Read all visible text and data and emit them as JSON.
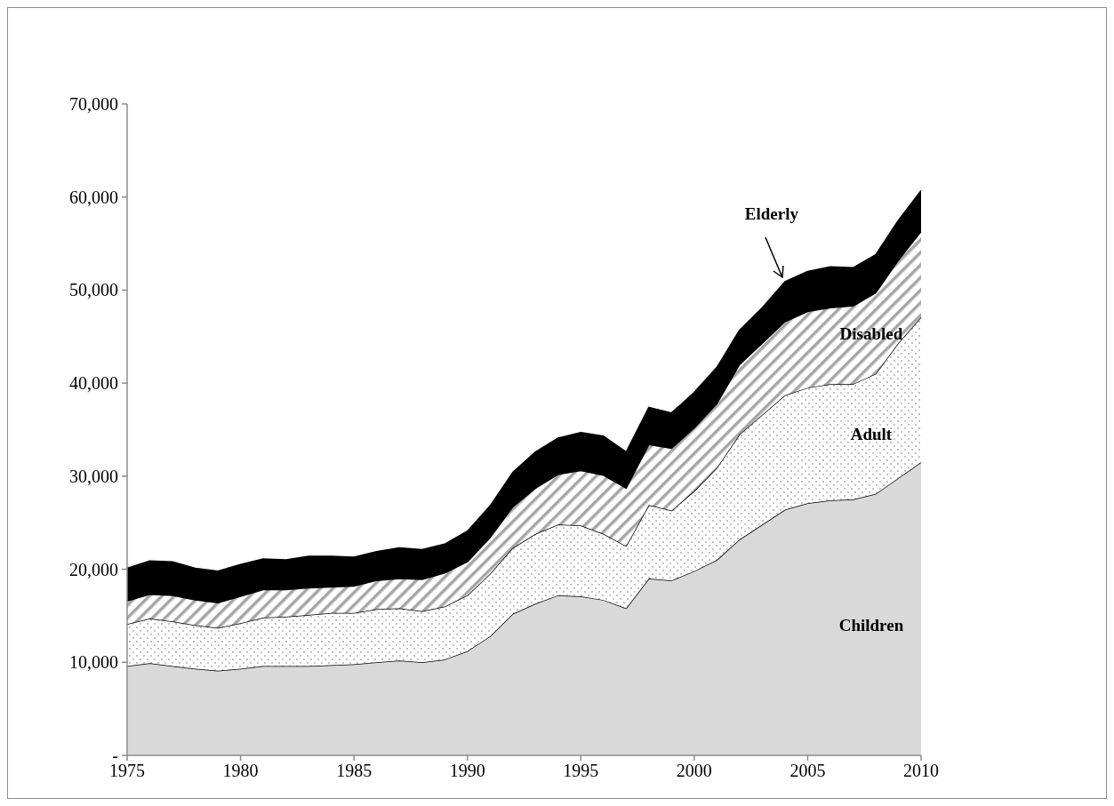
{
  "chart_data": {
    "type": "area",
    "stacked": true,
    "x": [
      1975,
      1976,
      1977,
      1978,
      1979,
      1980,
      1981,
      1982,
      1983,
      1984,
      1985,
      1986,
      1987,
      1988,
      1989,
      1990,
      1991,
      1992,
      1993,
      1994,
      1995,
      1996,
      1997,
      1998,
      1999,
      2000,
      2001,
      2002,
      2003,
      2004,
      2005,
      2006,
      2007,
      2008,
      2009,
      2010
    ],
    "series": [
      {
        "name": "Children",
        "color": "#d9d9d9",
        "values": [
          9600,
          9900,
          9600,
          9300,
          9100,
          9300,
          9600,
          9600,
          9600,
          9700,
          9800,
          10000,
          10200,
          10000,
          10300,
          11200,
          12800,
          15200,
          16300,
          17200,
          17100,
          16700,
          15800,
          19000,
          18800,
          19800,
          21000,
          23200,
          24800,
          26400,
          27100,
          27400,
          27500,
          28100,
          29800,
          31500
        ]
      },
      {
        "name": "Adult",
        "color": "#a6a6a6",
        "values": [
          4500,
          4800,
          4800,
          4700,
          4600,
          4900,
          5200,
          5300,
          5500,
          5600,
          5500,
          5700,
          5600,
          5500,
          5700,
          6000,
          6700,
          7100,
          7500,
          7600,
          7600,
          7100,
          6700,
          7900,
          7500,
          8600,
          9900,
          11300,
          11800,
          12300,
          12400,
          12500,
          12400,
          12900,
          14500,
          15600
        ]
      },
      {
        "name": "Disabled",
        "color": "#a6a6a6",
        "values": [
          2500,
          2600,
          2800,
          2700,
          2700,
          2900,
          3000,
          2900,
          2900,
          2800,
          2900,
          3100,
          3200,
          3400,
          3600,
          3600,
          3900,
          4400,
          4900,
          5400,
          5900,
          6300,
          6200,
          6500,
          6700,
          6800,
          6900,
          7500,
          7700,
          7900,
          8200,
          8200,
          8400,
          8700,
          8900,
          9200
        ]
      },
      {
        "name": "Elderly",
        "color": "#000000",
        "values": [
          3500,
          3600,
          3600,
          3400,
          3400,
          3400,
          3300,
          3200,
          3400,
          3300,
          3100,
          3100,
          3300,
          3200,
          3100,
          3300,
          3400,
          3700,
          3900,
          3900,
          4100,
          4200,
          3900,
          4000,
          3800,
          3800,
          3900,
          3700,
          3800,
          4300,
          4300,
          4400,
          4100,
          4100,
          4300,
          4400
        ]
      }
    ],
    "xlim": [
      1975,
      2010
    ],
    "xticks": [
      1975,
      1980,
      1985,
      1990,
      1995,
      2000,
      2005,
      2010
    ],
    "ylim": [
      0,
      70000
    ],
    "yticks": [
      {
        "value": 0,
        "label": "-"
      },
      {
        "value": 10000,
        "label": "10,000"
      },
      {
        "value": 20000,
        "label": "20,000"
      },
      {
        "value": 30000,
        "label": "30,000"
      },
      {
        "value": 40000,
        "label": "40,000"
      },
      {
        "value": 50000,
        "label": "50,000"
      },
      {
        "value": 60000,
        "label": "60,000"
      },
      {
        "value": 70000,
        "label": "70,000"
      }
    ],
    "grid": false,
    "legend": false
  }
}
